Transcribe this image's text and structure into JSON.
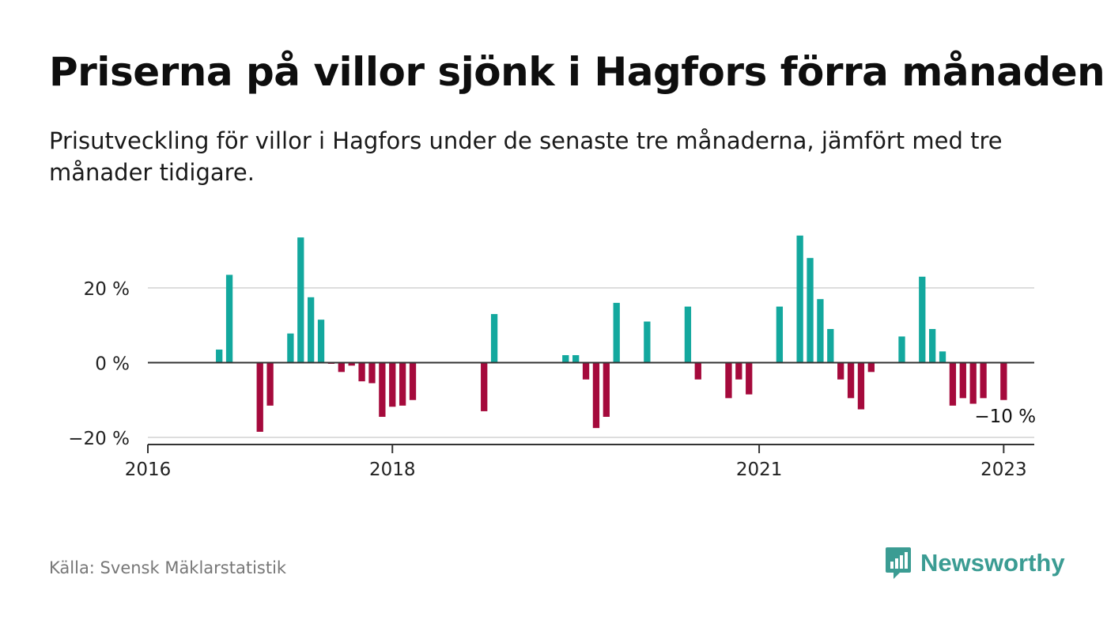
{
  "title": "Priserna på villor sjönk i Hagfors förra månaden",
  "subtitle": "Prisutveckling för villor i Hagfors under de senaste tre månaderna, jämfört med tre månader tidigare.",
  "source": "Källa: Svensk Mäklarstatistik",
  "brand": {
    "name": "Newsworthy",
    "icon": "newsworthy-logo-icon",
    "color": "#3b9c93"
  },
  "chart_data": {
    "type": "bar",
    "title": "Priserna på villor sjönk i Hagfors förra månaden",
    "xlabel": "",
    "ylabel": "",
    "ylim": [
      -22,
      35
    ],
    "yticks": [
      -20,
      0,
      20
    ],
    "ytick_labels": [
      "−20 %",
      "0 %",
      "20 %"
    ],
    "xticks": [
      "2016-01",
      "2018-01",
      "2021-01",
      "2023-01"
    ],
    "xtick_labels": [
      "2016",
      "2018",
      "2021",
      "2023"
    ],
    "xlim": [
      "2016-01",
      "2023-04"
    ],
    "grid": true,
    "colors": {
      "positive": "#13a89e",
      "negative": "#a50a3c",
      "axis": "#333333",
      "grid": "#dddddd"
    },
    "annotation": {
      "text": "−10 %",
      "month": "2023-01",
      "value": -10
    },
    "categories": [
      "2016-08",
      "2016-09",
      "2016-12",
      "2017-01",
      "2017-03",
      "2017-04",
      "2017-05",
      "2017-06",
      "2017-07",
      "2017-08",
      "2017-09",
      "2017-10",
      "2017-11",
      "2017-12",
      "2018-01",
      "2018-02",
      "2018-03",
      "2018-10",
      "2018-11",
      "2019-06",
      "2019-07",
      "2019-08",
      "2019-09",
      "2019-10",
      "2019-11",
      "2020-02",
      "2020-06",
      "2020-07",
      "2020-10",
      "2020-11",
      "2020-12",
      "2021-03",
      "2021-05",
      "2021-06",
      "2021-07",
      "2021-08",
      "2021-09",
      "2021-10",
      "2021-11",
      "2021-12",
      "2022-03",
      "2022-05",
      "2022-06",
      "2022-07",
      "2022-08",
      "2022-09",
      "2022-10",
      "2022-11",
      "2023-01"
    ],
    "values": [
      3.5,
      23.5,
      -18.5,
      -11.5,
      7.8,
      33.5,
      17.5,
      11.5,
      -0.3,
      -2.5,
      -0.8,
      -5,
      -5.5,
      -14.5,
      -11.8,
      -11.5,
      -10,
      -13,
      13,
      2,
      2,
      -4.5,
      -17.5,
      -14.5,
      16,
      11,
      15,
      -4.5,
      -9.5,
      -4.5,
      -8.5,
      15,
      34,
      28,
      17,
      9,
      -4.5,
      -9.5,
      -12.5,
      -2.5,
      7,
      23,
      9,
      3,
      -11.5,
      -9.5,
      -11,
      -9.5,
      -10
    ]
  }
}
